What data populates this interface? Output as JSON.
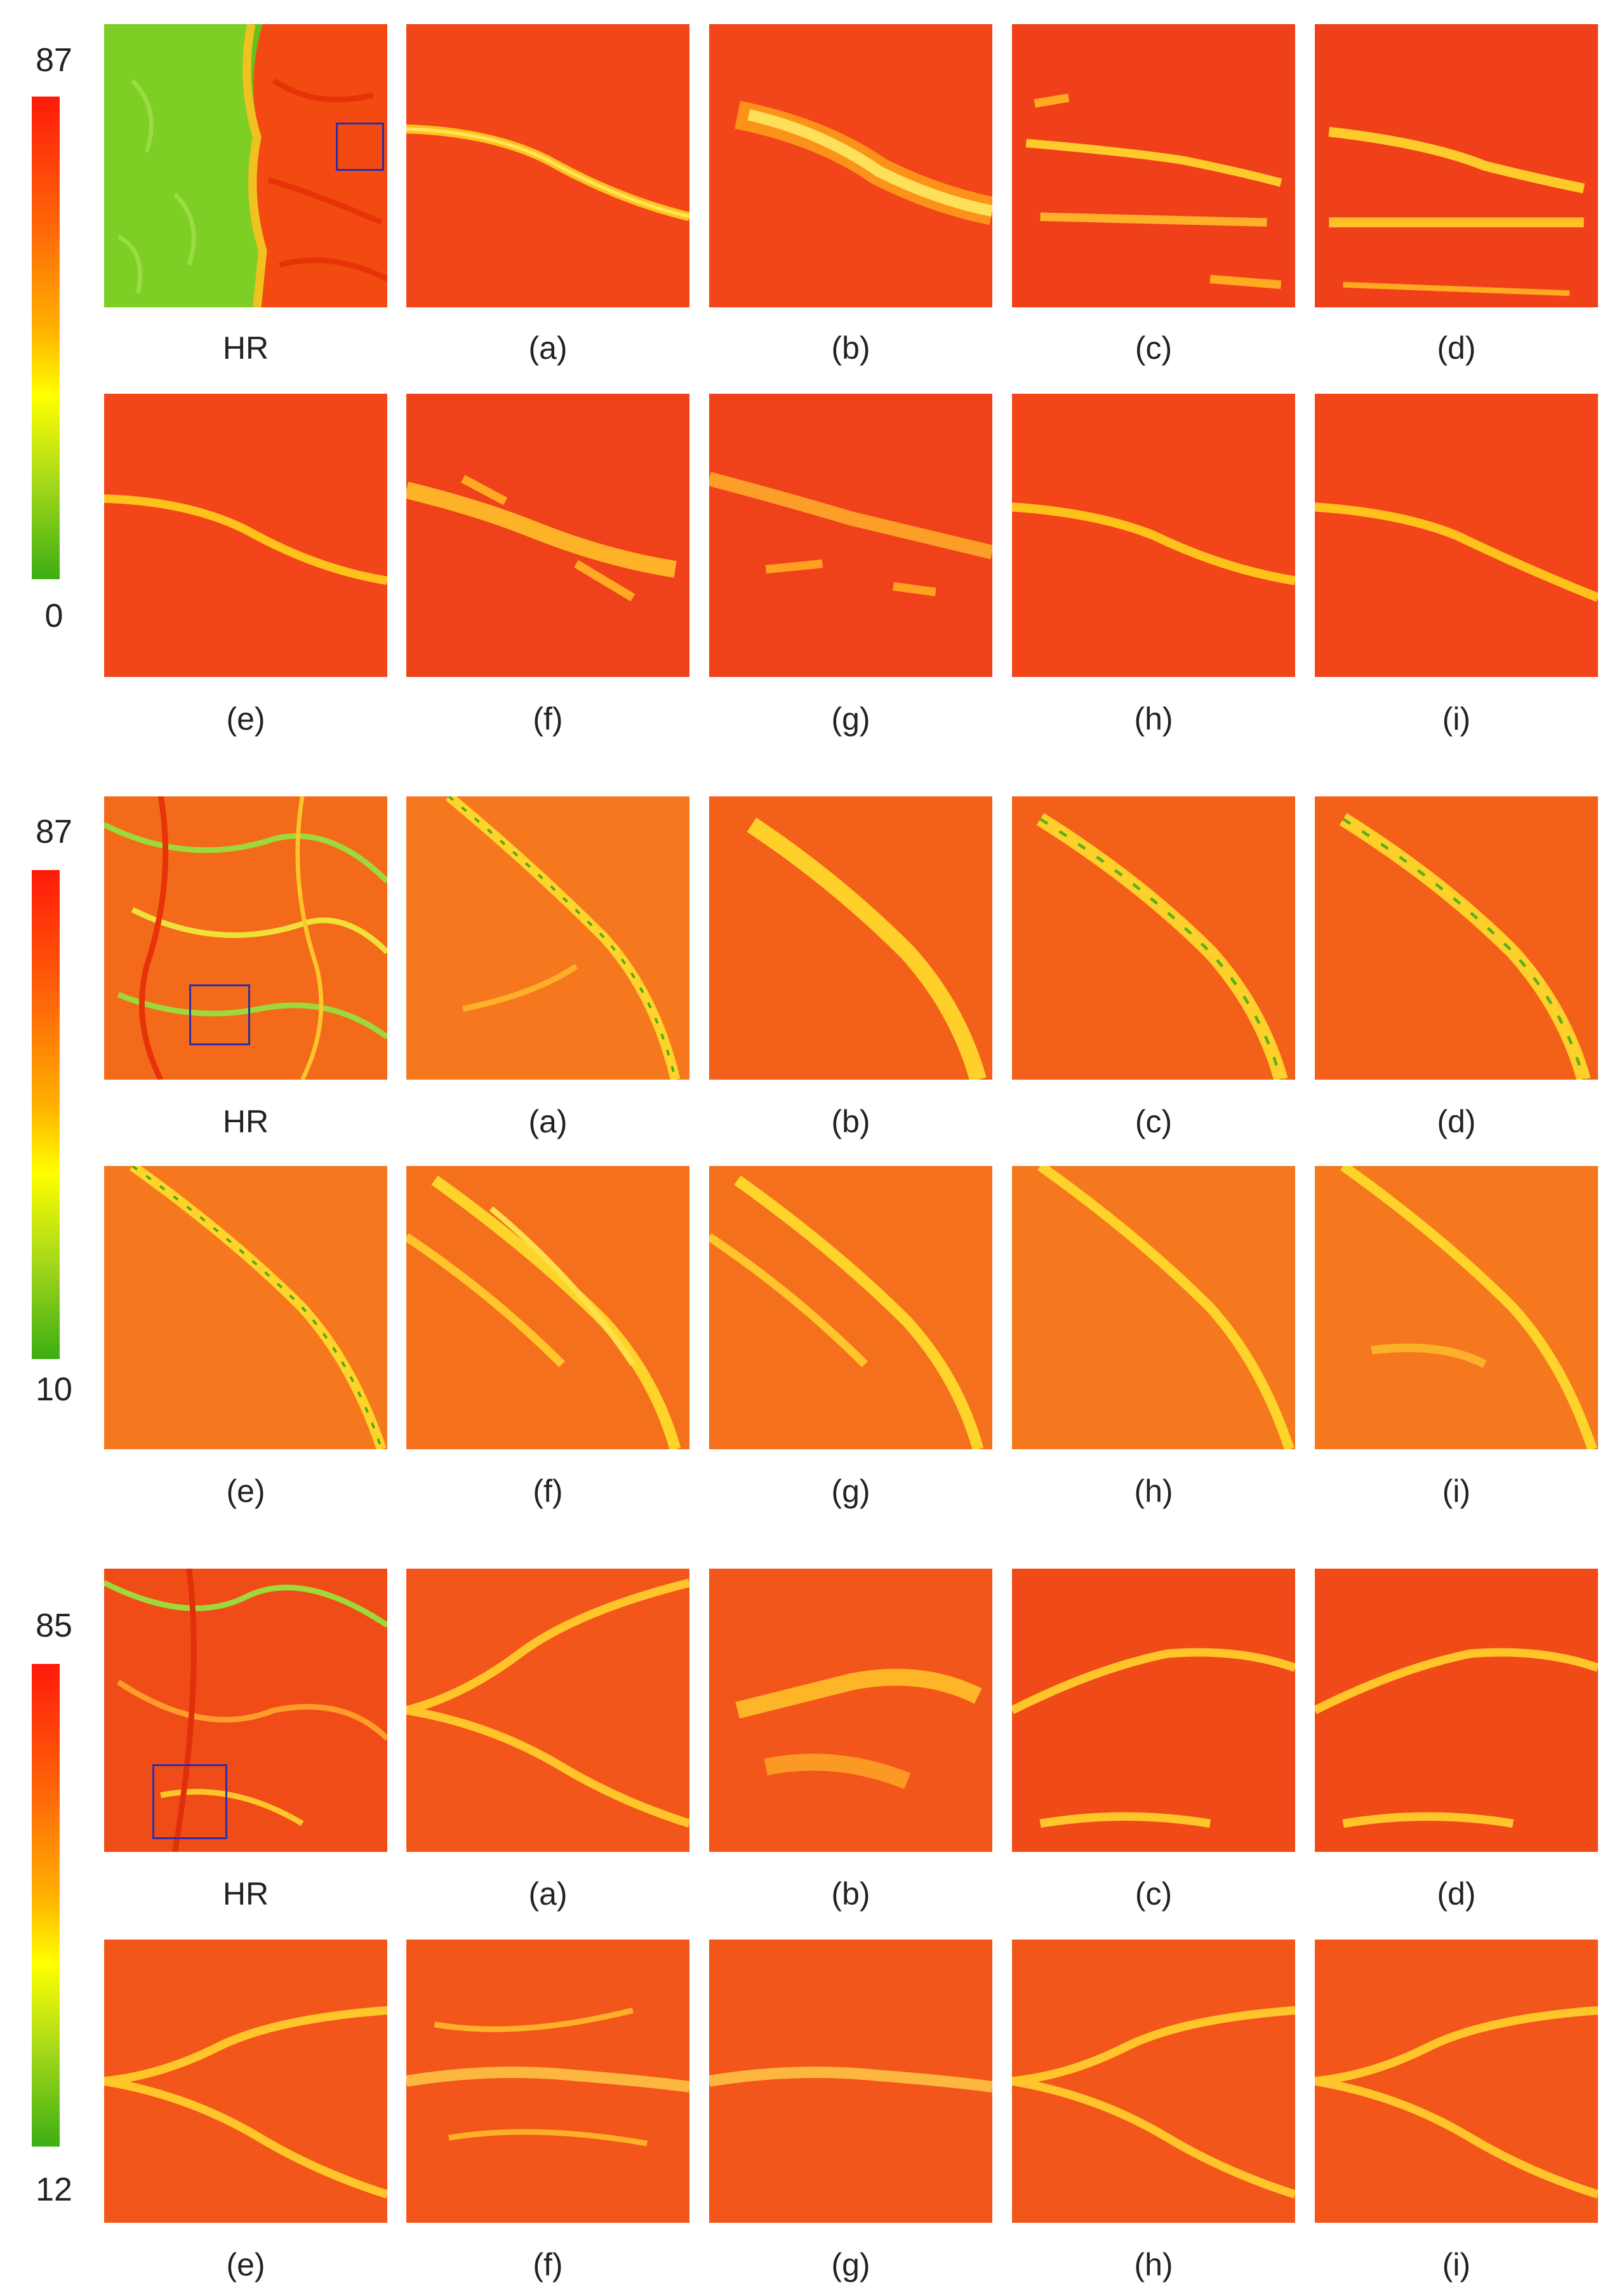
{
  "figure_groups": [
    {
      "id": "group-1",
      "colorbar": {
        "max": "87",
        "min": "0"
      },
      "hr_label": "HR",
      "hr_style": "green-left",
      "panel_labels": [
        "(a)",
        "(b)",
        "(c)",
        "(d)",
        "(e)",
        "(f)",
        "(g)",
        "(h)",
        "(i)"
      ]
    },
    {
      "id": "group-2",
      "colorbar": {
        "max": "87",
        "min": "10"
      },
      "hr_label": "HR",
      "hr_style": "mixed-terrain",
      "panel_labels": [
        "(a)",
        "(b)",
        "(c)",
        "(d)",
        "(e)",
        "(f)",
        "(g)",
        "(h)",
        "(i)"
      ]
    },
    {
      "id": "group-3",
      "colorbar": {
        "max": "85",
        "min": "12"
      },
      "hr_label": "HR",
      "hr_style": "red-terrain",
      "panel_labels": [
        "(a)",
        "(b)",
        "(c)",
        "(d)",
        "(e)",
        "(f)",
        "(g)",
        "(h)",
        "(i)"
      ]
    }
  ],
  "colors": {
    "high": "#ff1a0a",
    "mid": "#ffb000",
    "low": "#3cae13",
    "roi_box": "#2b2fa8"
  }
}
